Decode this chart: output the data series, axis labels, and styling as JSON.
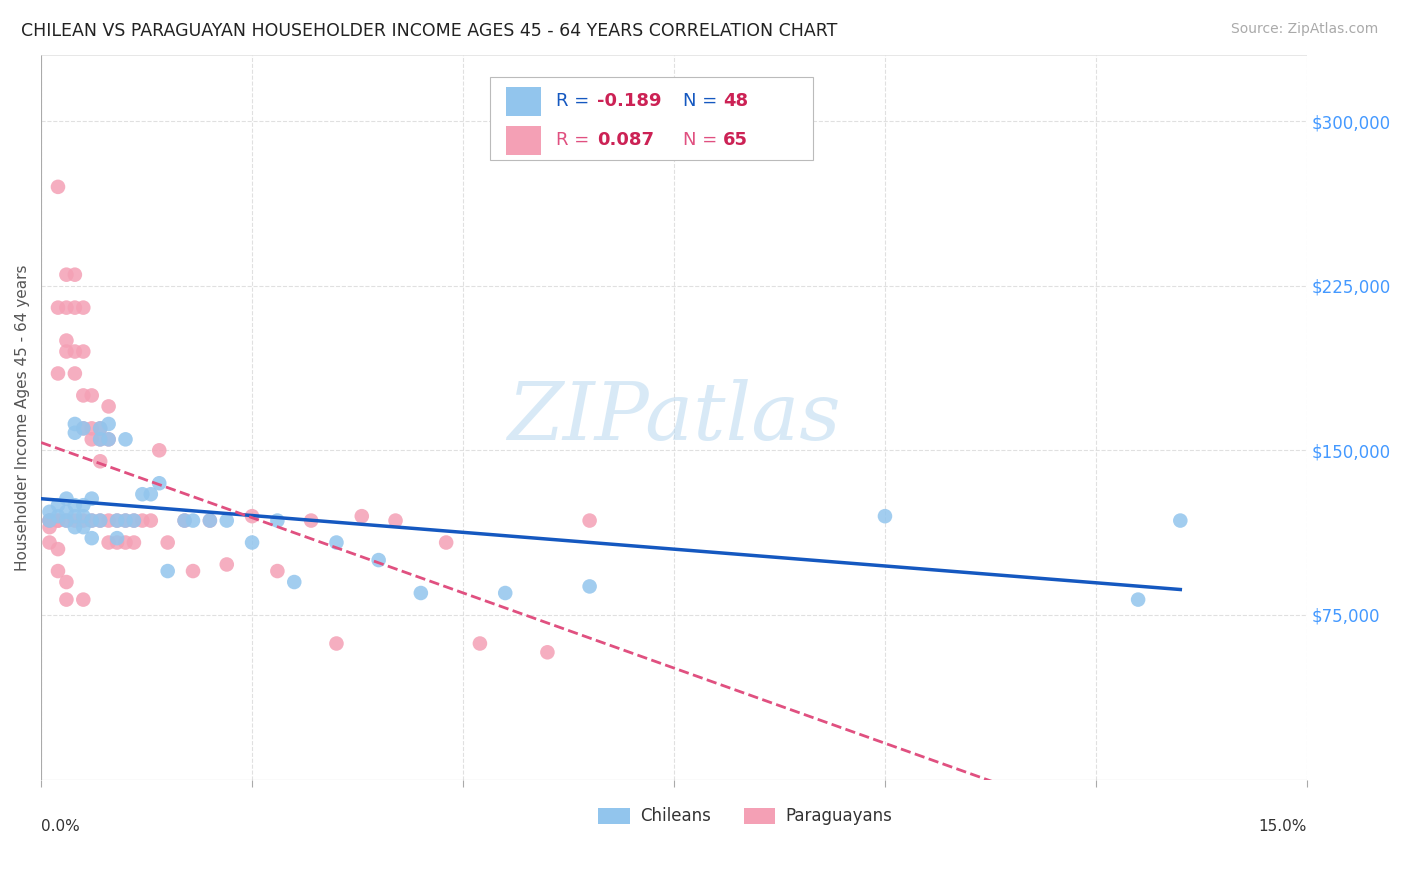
{
  "title": "CHILEAN VS PARAGUAYAN HOUSEHOLDER INCOME AGES 45 - 64 YEARS CORRELATION CHART",
  "source": "Source: ZipAtlas.com",
  "ylabel": "Householder Income Ages 45 - 64 years",
  "xmin": 0.0,
  "xmax": 0.15,
  "ymin": 0,
  "ymax": 330000,
  "yticks": [
    75000,
    150000,
    225000,
    300000
  ],
  "ytick_labels": [
    "$75,000",
    "$150,000",
    "$225,000",
    "$300,000"
  ],
  "chilean_color": "#92C5ED",
  "paraguayan_color": "#F4A0B5",
  "trendline_chilean_color": "#1558C0",
  "trendline_paraguayan_color": "#E05080",
  "background_color": "#FFFFFF",
  "grid_color": "#DDDDDD",
  "watermark_text": "ZIPatlas",
  "watermark_color": "#B8D8F0",
  "chilean_x": [
    0.001,
    0.001,
    0.002,
    0.002,
    0.003,
    0.003,
    0.003,
    0.004,
    0.004,
    0.004,
    0.004,
    0.004,
    0.005,
    0.005,
    0.005,
    0.005,
    0.006,
    0.006,
    0.006,
    0.007,
    0.007,
    0.007,
    0.008,
    0.008,
    0.009,
    0.009,
    0.01,
    0.01,
    0.011,
    0.012,
    0.013,
    0.014,
    0.015,
    0.017,
    0.018,
    0.02,
    0.022,
    0.025,
    0.028,
    0.03,
    0.035,
    0.04,
    0.045,
    0.055,
    0.065,
    0.1,
    0.13,
    0.135
  ],
  "chilean_y": [
    122000,
    118000,
    120000,
    125000,
    118000,
    122000,
    128000,
    115000,
    120000,
    125000,
    158000,
    162000,
    115000,
    120000,
    125000,
    160000,
    110000,
    118000,
    128000,
    155000,
    160000,
    118000,
    155000,
    162000,
    110000,
    118000,
    155000,
    118000,
    118000,
    130000,
    130000,
    135000,
    95000,
    118000,
    118000,
    118000,
    118000,
    108000,
    118000,
    90000,
    108000,
    100000,
    85000,
    85000,
    88000,
    120000,
    82000,
    118000
  ],
  "paraguayan_x": [
    0.001,
    0.001,
    0.001,
    0.001,
    0.002,
    0.002,
    0.002,
    0.002,
    0.002,
    0.002,
    0.002,
    0.003,
    0.003,
    0.003,
    0.003,
    0.003,
    0.003,
    0.003,
    0.004,
    0.004,
    0.004,
    0.004,
    0.004,
    0.005,
    0.005,
    0.005,
    0.005,
    0.005,
    0.005,
    0.006,
    0.006,
    0.006,
    0.006,
    0.007,
    0.007,
    0.007,
    0.007,
    0.008,
    0.008,
    0.008,
    0.008,
    0.009,
    0.009,
    0.01,
    0.01,
    0.011,
    0.011,
    0.012,
    0.013,
    0.014,
    0.015,
    0.017,
    0.018,
    0.02,
    0.022,
    0.025,
    0.028,
    0.032,
    0.035,
    0.038,
    0.042,
    0.048,
    0.052,
    0.06,
    0.065
  ],
  "paraguayan_y": [
    118000,
    118000,
    115000,
    108000,
    270000,
    215000,
    185000,
    118000,
    118000,
    105000,
    95000,
    230000,
    215000,
    200000,
    195000,
    118000,
    90000,
    82000,
    230000,
    215000,
    195000,
    185000,
    118000,
    215000,
    195000,
    175000,
    160000,
    118000,
    82000,
    175000,
    160000,
    155000,
    118000,
    160000,
    155000,
    145000,
    118000,
    170000,
    155000,
    118000,
    108000,
    118000,
    108000,
    118000,
    108000,
    118000,
    108000,
    118000,
    118000,
    150000,
    108000,
    118000,
    95000,
    118000,
    98000,
    120000,
    95000,
    118000,
    62000,
    120000,
    118000,
    108000,
    62000,
    58000,
    118000
  ]
}
